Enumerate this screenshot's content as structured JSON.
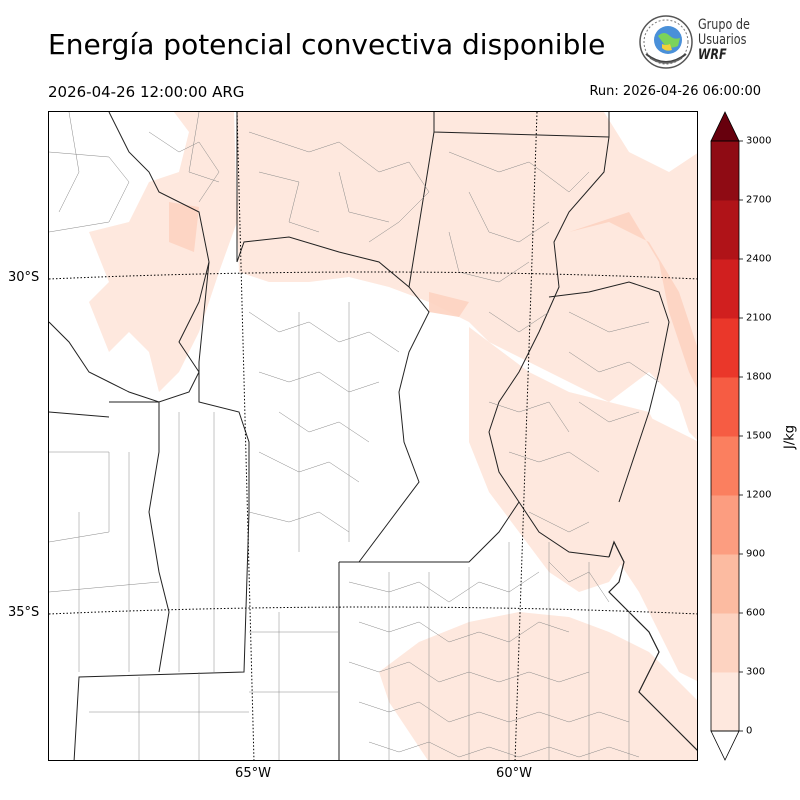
{
  "header": {
    "title": "Energía potencial convectiva disponible",
    "valid_time": "2026-04-26 12:00:00 ARG",
    "run_time": "Run: 2026-04-26 06:00:00"
  },
  "logo": {
    "line1": "Grupo de",
    "line2": "Usuarios",
    "line3": "WRF"
  },
  "map": {
    "lat_labels": [
      "30°S",
      "35°S"
    ],
    "lon_labels": [
      "65°W",
      "60°W"
    ]
  },
  "colorbar": {
    "unit": "J/kg",
    "ticks": [
      "0",
      "300",
      "600",
      "900",
      "1200",
      "1500",
      "1800",
      "2100",
      "2400",
      "2700",
      "3000"
    ],
    "colors": [
      "#fee8de",
      "#fdd3c1",
      "#fcbba1",
      "#fc9d80",
      "#fb7f5f",
      "#f65c43",
      "#ea372a",
      "#d11f1f",
      "#b01318",
      "#8f0b14"
    ],
    "over_color": "#67000d",
    "under_color": "#ffffff",
    "extend": "both"
  }
}
